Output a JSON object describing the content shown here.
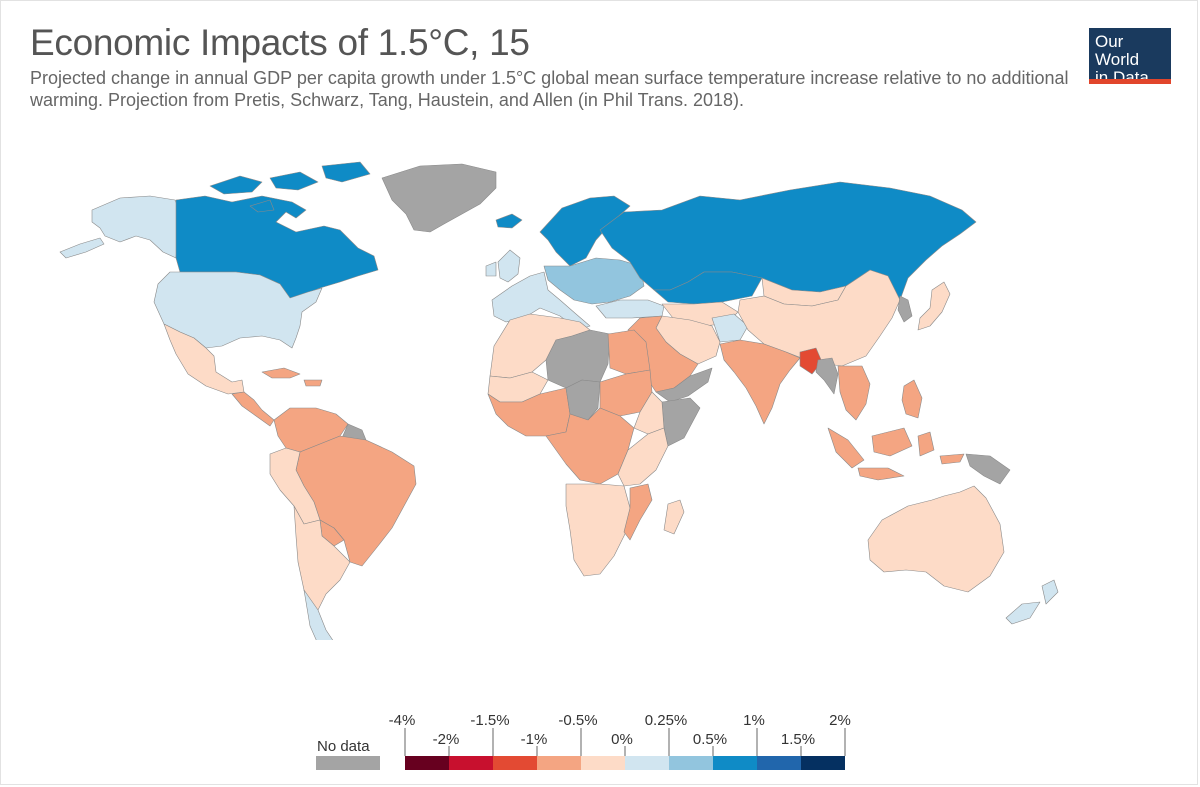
{
  "header": {
    "title": "Economic Impacts of 1.5°C, 15",
    "subtitle": "Projected change in annual GDP per capita growth under 1.5°C global mean surface temperature increase relative to no additional warming. Projection from Pretis, Schwarz, Tang, Haustein, and Allen (in Phil Trans. 2018)."
  },
  "logo": {
    "line1": "Our World",
    "line2": "in Data"
  },
  "colors": {
    "no_data": "#a4a4a4",
    "neg_4_2": "#67001f",
    "neg_2_15": "#c8102e",
    "neg_15_1": "#e34a33",
    "neg_1_05": "#f4a582",
    "neg_05_0": "#fddbc7",
    "pos_0_025": "#d1e5f0",
    "pos_025_05": "#92c5de",
    "pos_05_1": "#0f8bc6",
    "pos_1_15": "#2166ac",
    "pos_15_2": "#053061"
  },
  "legend": {
    "no_data_label": "No data",
    "upper_labels": [
      "-4%",
      "-1.5%",
      "-0.5%",
      "0.25%",
      "1%",
      "2%"
    ],
    "lower_labels": [
      "-2%",
      "-1%",
      "0%",
      "0.5%",
      "1.5%"
    ],
    "bins": [
      "neg_4_2",
      "neg_2_15",
      "neg_15_1",
      "neg_1_05",
      "neg_05_0",
      "pos_0_025",
      "pos_025_05",
      "pos_05_1",
      "pos_1_15",
      "pos_15_2"
    ]
  },
  "map": {
    "regions": [
      {
        "name": "alaska",
        "bin": "pos_0_025"
      },
      {
        "name": "canada",
        "bin": "pos_05_1"
      },
      {
        "name": "canadian-islands",
        "bin": "pos_05_1"
      },
      {
        "name": "greenland",
        "bin": "no_data"
      },
      {
        "name": "iceland",
        "bin": "pos_05_1"
      },
      {
        "name": "usa",
        "bin": "pos_0_025"
      },
      {
        "name": "mexico",
        "bin": "neg_05_0"
      },
      {
        "name": "central-america",
        "bin": "neg_1_05"
      },
      {
        "name": "caribbean",
        "bin": "neg_1_05"
      },
      {
        "name": "colombia-venezuela",
        "bin": "neg_1_05"
      },
      {
        "name": "guianas",
        "bin": "no_data"
      },
      {
        "name": "brazil",
        "bin": "neg_1_05"
      },
      {
        "name": "peru-bolivia",
        "bin": "neg_05_0"
      },
      {
        "name": "argentina-chile",
        "bin": "neg_05_0"
      },
      {
        "name": "patagonia",
        "bin": "pos_0_025"
      },
      {
        "name": "paraguay",
        "bin": "neg_1_05"
      },
      {
        "name": "uk-ireland",
        "bin": "pos_0_025"
      },
      {
        "name": "scandinavia",
        "bin": "pos_05_1"
      },
      {
        "name": "western-europe",
        "bin": "pos_0_025"
      },
      {
        "name": "eastern-europe",
        "bin": "pos_025_05"
      },
      {
        "name": "turkey",
        "bin": "pos_0_025"
      },
      {
        "name": "russia",
        "bin": "pos_05_1"
      },
      {
        "name": "kazakhstan",
        "bin": "pos_05_1"
      },
      {
        "name": "china",
        "bin": "neg_05_0"
      },
      {
        "name": "mongolia",
        "bin": "neg_05_0"
      },
      {
        "name": "korea",
        "bin": "no_data"
      },
      {
        "name": "japan",
        "bin": "neg_05_0"
      },
      {
        "name": "central-asia",
        "bin": "neg_05_0"
      },
      {
        "name": "afghanistan",
        "bin": "pos_0_025"
      },
      {
        "name": "iran",
        "bin": "neg_05_0"
      },
      {
        "name": "middle-east",
        "bin": "neg_1_05"
      },
      {
        "name": "yemen-oman",
        "bin": "no_data"
      },
      {
        "name": "india",
        "bin": "neg_1_05"
      },
      {
        "name": "bangladesh",
        "bin": "neg_15_1"
      },
      {
        "name": "myanmar",
        "bin": "no_data"
      },
      {
        "name": "southeast-asia",
        "bin": "neg_1_05"
      },
      {
        "name": "indonesia",
        "bin": "neg_1_05"
      },
      {
        "name": "philippines",
        "bin": "neg_1_05"
      },
      {
        "name": "new-guinea",
        "bin": "no_data"
      },
      {
        "name": "australia",
        "bin": "neg_05_0"
      },
      {
        "name": "new-zealand",
        "bin": "pos_0_025"
      },
      {
        "name": "north-africa",
        "bin": "neg_05_0"
      },
      {
        "name": "algeria-libya",
        "bin": "no_data"
      },
      {
        "name": "egypt",
        "bin": "neg_1_05"
      },
      {
        "name": "west-africa",
        "bin": "neg_1_05"
      },
      {
        "name": "sahel",
        "bin": "neg_05_0"
      },
      {
        "name": "chad",
        "bin": "no_data"
      },
      {
        "name": "sudan",
        "bin": "neg_1_05"
      },
      {
        "name": "horn-of-africa",
        "bin": "no_data"
      },
      {
        "name": "ethiopia",
        "bin": "neg_05_0"
      },
      {
        "name": "central-africa",
        "bin": "neg_1_05"
      },
      {
        "name": "east-africa",
        "bin": "neg_05_0"
      },
      {
        "name": "southern-africa",
        "bin": "neg_05_0"
      },
      {
        "name": "mozambique",
        "bin": "neg_1_05"
      },
      {
        "name": "madagascar",
        "bin": "neg_05_0"
      }
    ]
  }
}
